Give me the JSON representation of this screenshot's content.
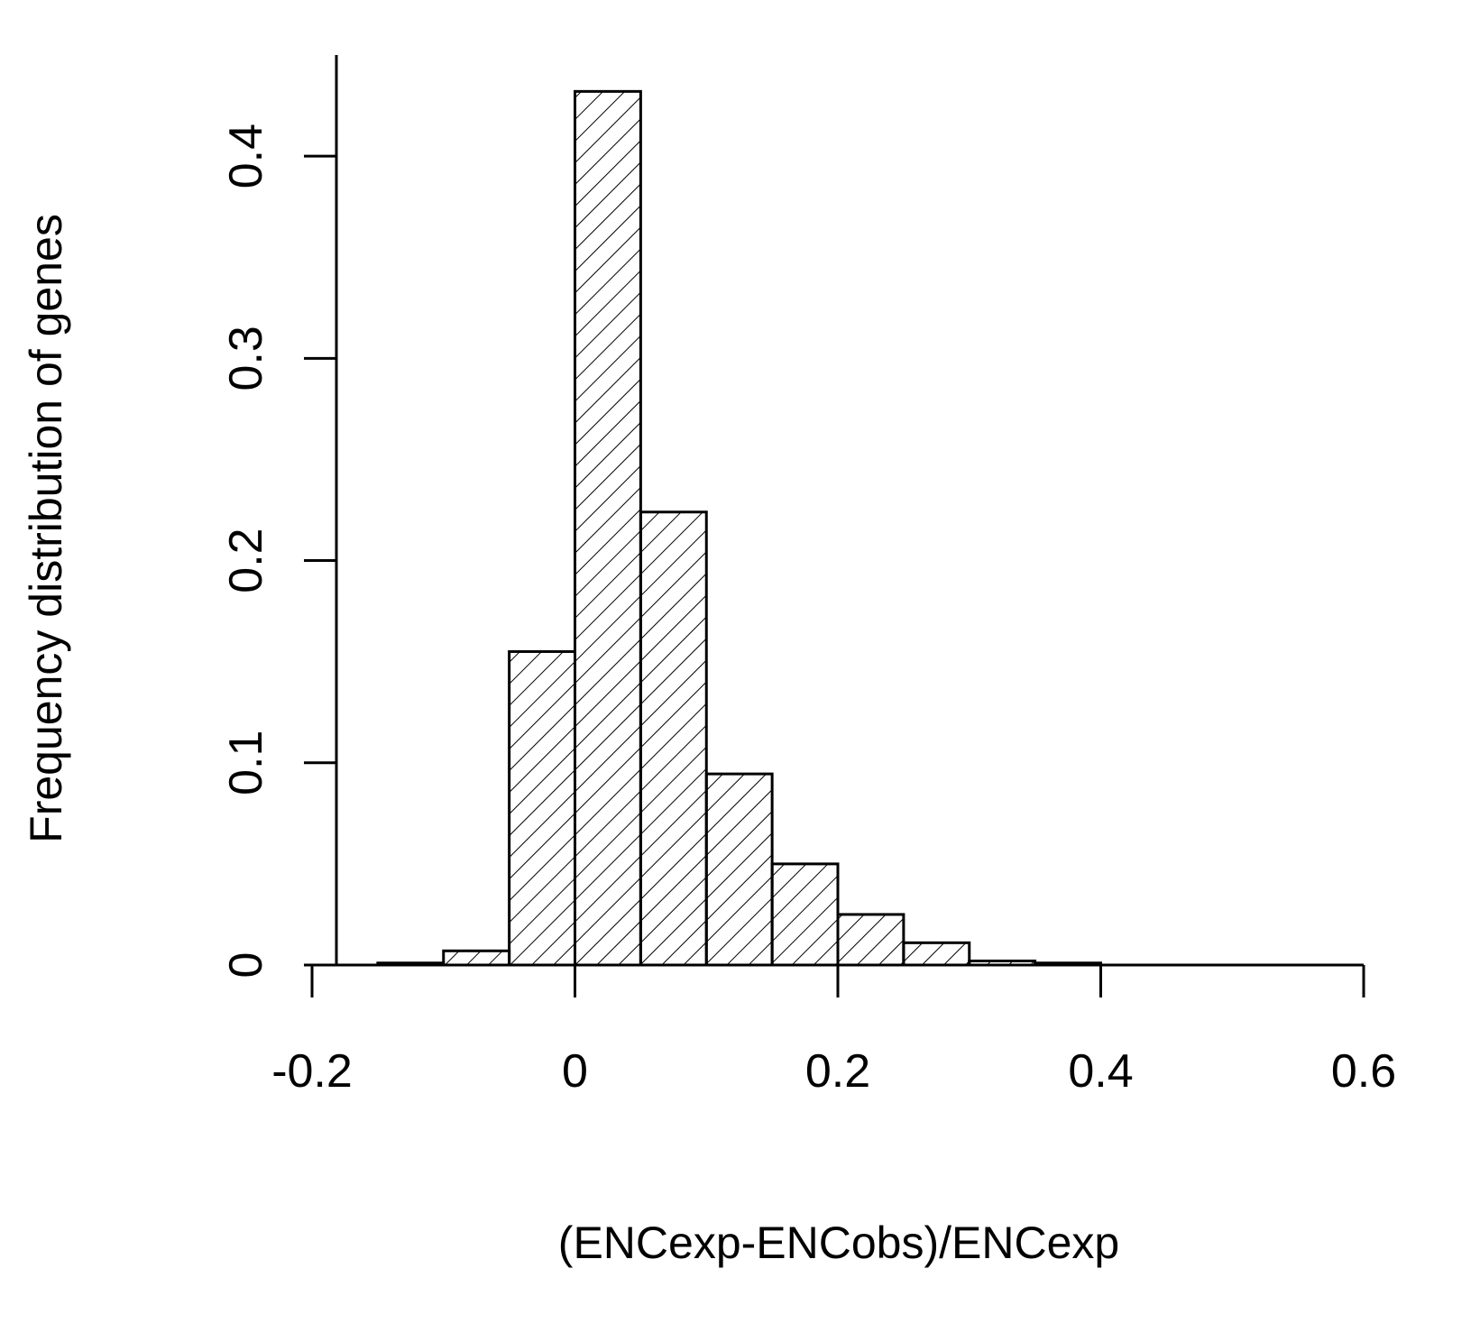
{
  "chart_data": {
    "type": "histogram",
    "xlabel": "(ENCexp-ENCobs)/ENCexp",
    "ylabel": "Frequency distribution of genes",
    "bins": [
      -0.15,
      -0.1,
      -0.05,
      0,
      0.05,
      0.1,
      0.15,
      0.2,
      0.25,
      0.3,
      0.35,
      0.4,
      0.45,
      0.5,
      0.55,
      0.6
    ],
    "values": [
      0.001,
      0.007,
      0.155,
      0.432,
      0.224,
      0.0945,
      0.05,
      0.025,
      0.011,
      0.002,
      0.001,
      0,
      0,
      0,
      0
    ],
    "color": "#000000",
    "hatch": true,
    "xlim": [
      -0.2,
      0.6
    ],
    "xticks": [
      -0.2,
      0,
      0.2,
      0.4,
      0.6
    ],
    "ylim": [
      0,
      0.45
    ],
    "yticks": [
      0,
      0.1,
      0.2,
      0.3,
      0.4
    ]
  }
}
